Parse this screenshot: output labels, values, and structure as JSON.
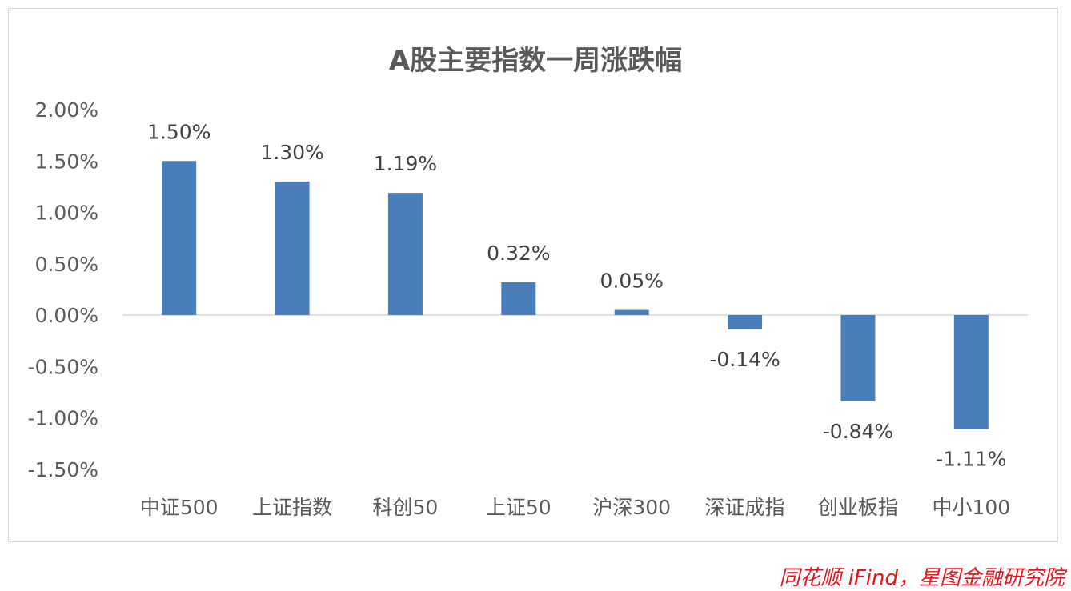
{
  "chart_data": {
    "type": "bar",
    "title": "A股主要指数一周涨跌幅",
    "categories": [
      "中证500",
      "上证指数",
      "科创50",
      "上证50",
      "沪深300",
      "深证成指",
      "创业板指",
      "中小100"
    ],
    "values": [
      1.5,
      1.3,
      1.19,
      0.32,
      0.05,
      -0.14,
      -0.84,
      -1.11
    ],
    "data_labels": [
      "1.50%",
      "1.30%",
      "1.19%",
      "0.32%",
      "0.05%",
      "-0.14%",
      "-0.84%",
      "-1.11%"
    ],
    "yticks": [
      "2.00%",
      "1.50%",
      "1.00%",
      "0.50%",
      "0.00%",
      "-0.50%",
      "-1.00%",
      "-1.50%"
    ],
    "ytick_values": [
      2.0,
      1.5,
      1.0,
      0.5,
      0.0,
      -0.5,
      -1.0,
      -1.5
    ],
    "ylim": [
      -1.5,
      2.0
    ],
    "unit": "%",
    "grid": false,
    "legend": "none",
    "bar_color": "#4a7ebb",
    "xlabel": "",
    "ylabel": ""
  },
  "source": "同花顺 iFind，星图金融研究院"
}
